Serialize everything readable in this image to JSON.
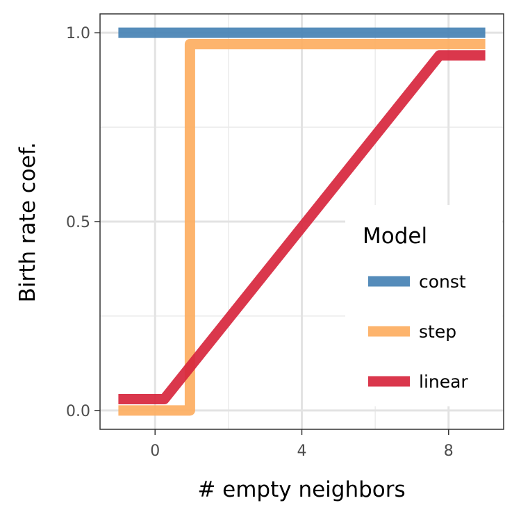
{
  "chart_data": {
    "type": "line",
    "title": "",
    "xlabel": "# empty neighbors",
    "ylabel": "Birth rate coef.",
    "xlim": [
      -1.5,
      9.5
    ],
    "ylim": [
      -0.05,
      1.05
    ],
    "x_ticks": [
      0,
      4,
      8
    ],
    "x_tick_labels": [
      "0",
      "4",
      "8"
    ],
    "y_ticks": [
      0.0,
      0.5,
      1.0
    ],
    "y_tick_labels": [
      "0.0",
      "0.5",
      "1.0"
    ],
    "grid": true,
    "legend": {
      "title": "Model",
      "placement": "right-center"
    },
    "series": [
      {
        "name": "const",
        "color": "#4682B4",
        "points": [
          [
            -1,
            1.0
          ],
          [
            9,
            1.0
          ]
        ]
      },
      {
        "name": "step",
        "color": "#FDAE61",
        "points": [
          [
            -1,
            0.0
          ],
          [
            0.95,
            0.0
          ],
          [
            0.95,
            0.97
          ],
          [
            9,
            0.97
          ]
        ]
      },
      {
        "name": "linear",
        "color": "#D7263D",
        "points": [
          [
            -1,
            0.03
          ],
          [
            0.25,
            0.03
          ],
          [
            7.75,
            0.94
          ],
          [
            9,
            0.94
          ]
        ]
      }
    ]
  }
}
